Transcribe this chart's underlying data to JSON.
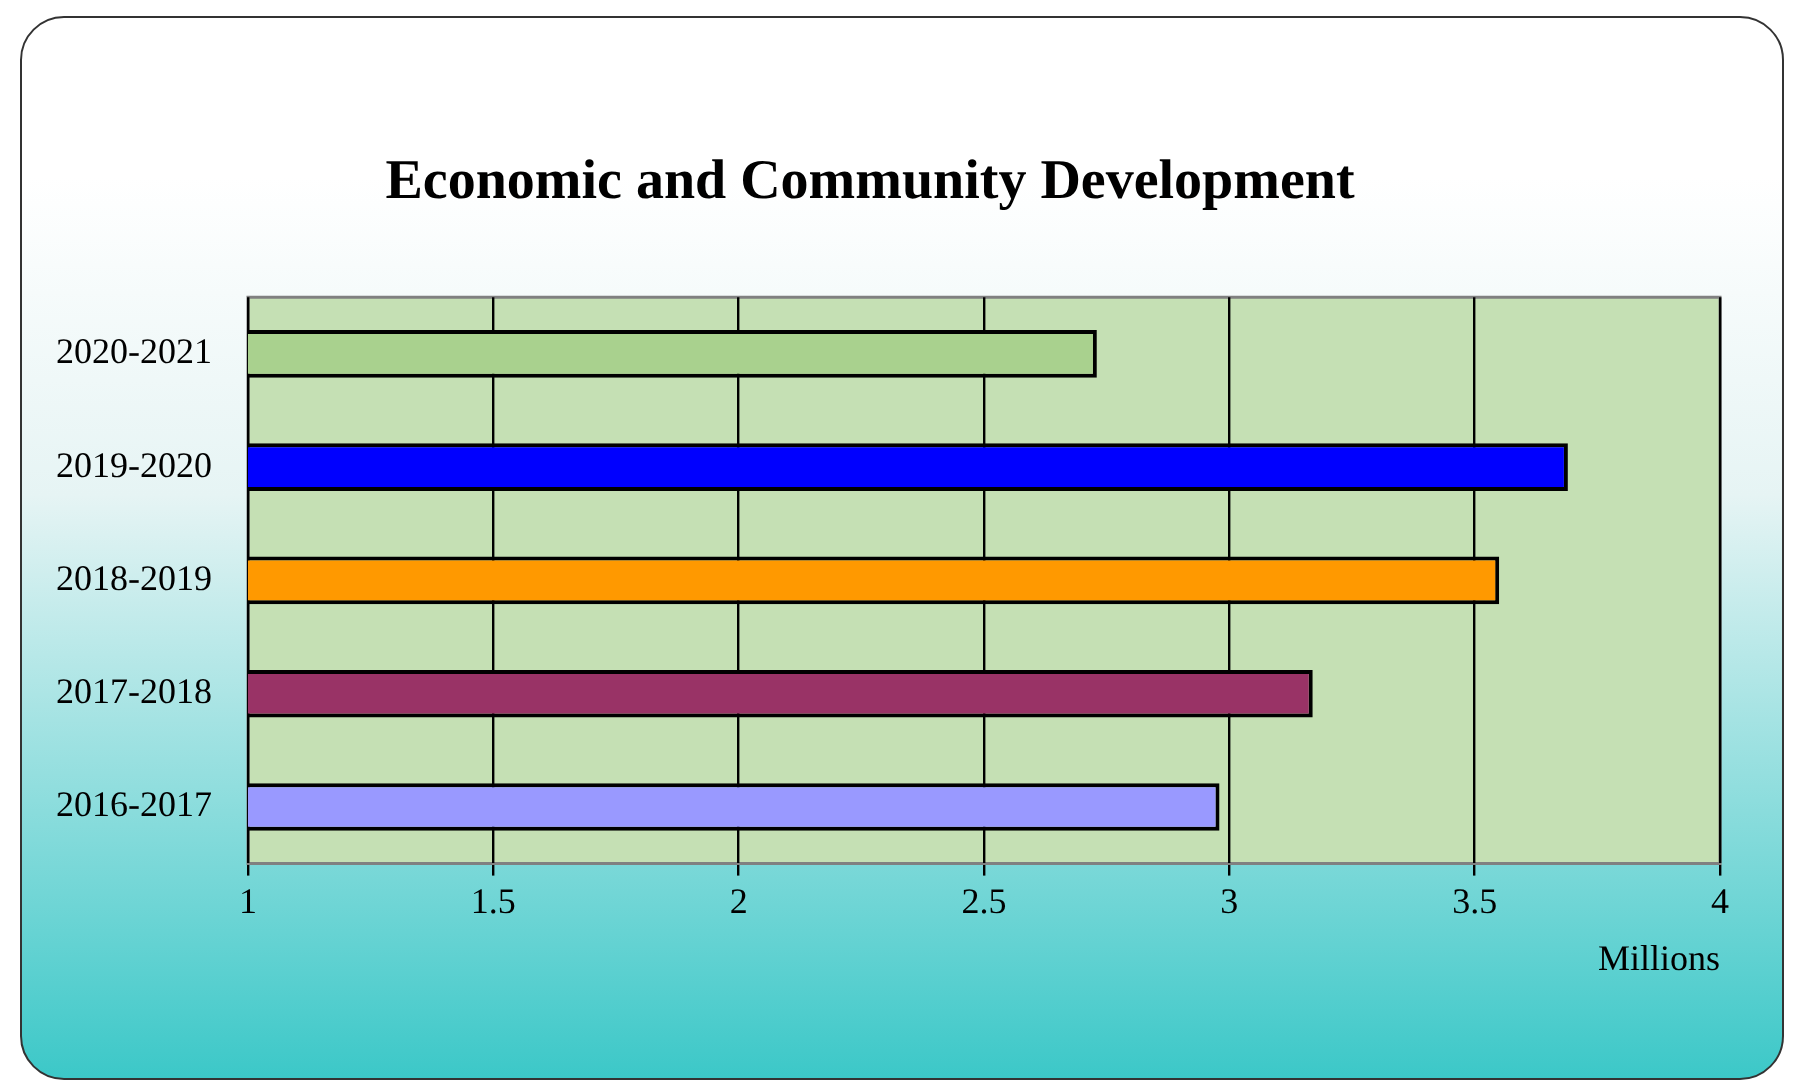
{
  "chart_data": {
    "type": "bar",
    "orientation": "horizontal",
    "title": "Economic and Community Development",
    "xlabel": "Millions",
    "categories": [
      "2020-2021",
      "2019-2020",
      "2018-2019",
      "2017-2018",
      "2016-2017"
    ],
    "values": [
      2.73,
      3.69,
      3.55,
      3.17,
      2.98
    ],
    "colors": [
      "#a9d18e",
      "#0000ff",
      "#ff9900",
      "#993366",
      "#9999ff"
    ],
    "xlim": [
      1,
      4
    ],
    "xticks": [
      1,
      1.5,
      2,
      2.5,
      3,
      3.5,
      4
    ],
    "grid": "x",
    "legend": false
  }
}
